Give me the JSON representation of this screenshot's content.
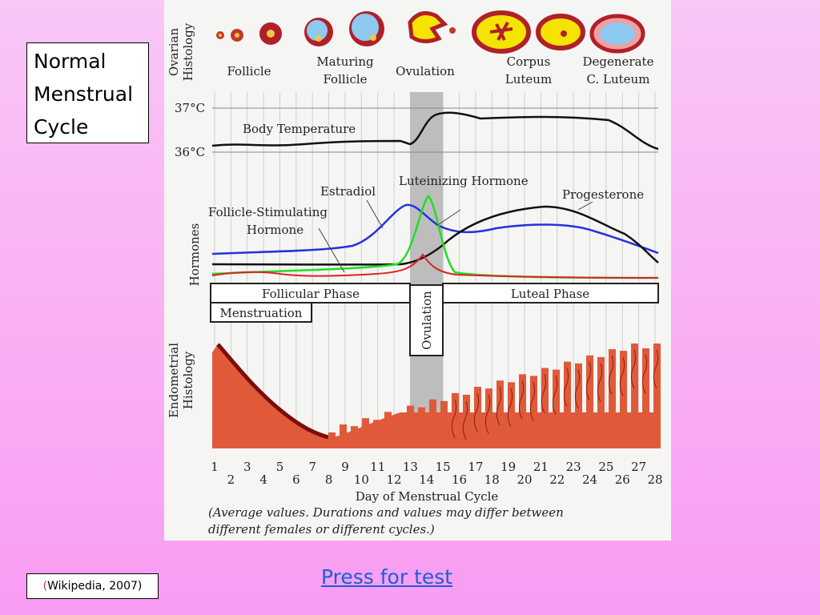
{
  "slide": {
    "title_lines": [
      "Normal",
      "Menstrual",
      "Cycle"
    ],
    "citation_open": "(",
    "citation": "Wikipedia, 2007)",
    "link": "Press for test"
  },
  "diagram": {
    "row_labels": {
      "ovarian": [
        "Ovarian",
        "Histology"
      ],
      "hormones": "Hormones",
      "endometrial": [
        "Endometrial",
        "Histology"
      ]
    },
    "stages": [
      [
        "Follicle"
      ],
      [
        "Maturing",
        "Follicle"
      ],
      [
        "Ovulation"
      ],
      [
        "Corpus",
        "Luteum"
      ],
      [
        "Degenerate",
        "C. Luteum"
      ]
    ],
    "temperature": {
      "high": "37°C",
      "low": "36°C",
      "label": "Body Temperature"
    },
    "hormones": {
      "lh": "Luteinizing  Hormone",
      "estradiol": "Estradiol",
      "fsh": [
        "Follicle-Stimulating",
        "Hormone"
      ],
      "progesterone": "Progesterone"
    },
    "phases": {
      "follicular": "Follicular Phase",
      "luteal": "Luteal Phase",
      "menstruation": "Menstruation",
      "ovulation": "Ovulation"
    },
    "days": [
      1,
      2,
      3,
      4,
      5,
      6,
      7,
      8,
      9,
      10,
      11,
      12,
      13,
      14,
      15,
      16,
      17,
      18,
      19,
      20,
      21,
      22,
      23,
      24,
      25,
      26,
      27,
      28
    ],
    "x_title": "Day of Menstrual Cycle",
    "note": [
      "(Average values. Durations and values may differ between",
      "different females or different cycles.)"
    ]
  }
}
